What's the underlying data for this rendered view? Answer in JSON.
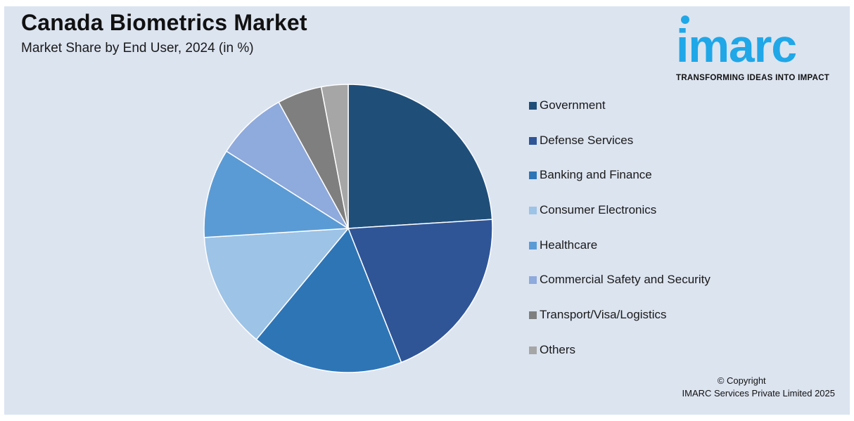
{
  "title": "Canada Biometrics Market",
  "subtitle": "Market Share by End User, 2024 (in %)",
  "logo": {
    "word": "imarc",
    "tagline": "TRANSFORMING IDEAS INTO IMPACT",
    "color": "#1fa7e8"
  },
  "copyright": {
    "line1": "© Copyright",
    "line2": "IMARC Services Private Limited 2025"
  },
  "chart_data": {
    "type": "pie",
    "title": "Canada Biometrics Market",
    "subtitle": "Market Share by End User, 2024 (in %)",
    "legend_position": "right",
    "categories": [
      "Government",
      "Defense Services",
      "Banking and Finance",
      "Consumer Electronics",
      "Healthcare",
      "Commercial Safety and Security",
      "Transport/Visa/Logistics",
      "Others"
    ],
    "values": [
      24,
      20,
      17,
      13,
      10,
      8,
      5,
      3
    ],
    "colors": [
      "#1f4e79",
      "#2f5597",
      "#2e75b6",
      "#9dc3e6",
      "#5b9bd5",
      "#8faadc",
      "#7f7f7f",
      "#a6a6a6"
    ]
  }
}
